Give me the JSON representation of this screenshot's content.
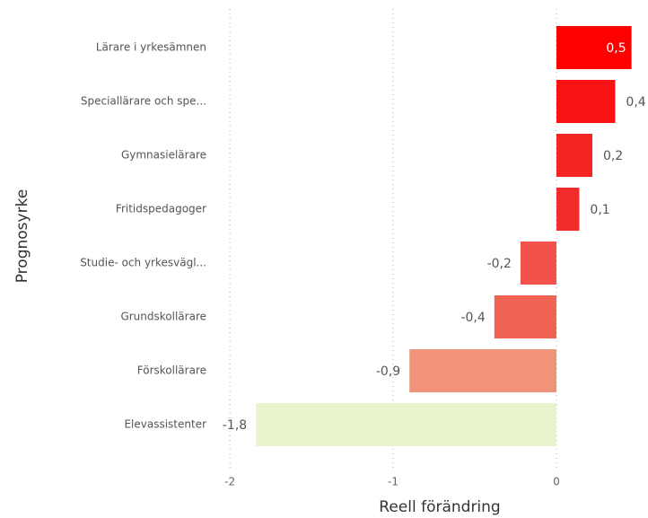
{
  "chart_data": {
    "type": "hbar",
    "y_label": "Prognosyrke",
    "x_label": "Reell förändring",
    "categories": [
      "Lärare i yrkesämnen",
      "Speciallärare och spe...",
      "Gymnasielärare",
      "Fritidspedagoger",
      "Studie- och yrkesvägl...",
      "Grundskollärare",
      "Förskollärare",
      "Elevassistenter"
    ],
    "values": [
      0.46,
      0.36,
      0.22,
      0.14,
      -0.22,
      -0.38,
      -0.9,
      -1.84
    ],
    "value_labels": [
      "0,5",
      "0,4",
      "0,2",
      "0,1",
      "-0,2",
      "-0,4",
      "-0,9",
      "-1,8"
    ],
    "colors": [
      "#fe0000",
      "#f81212",
      "#f42424",
      "#f22c2c",
      "#f2524a",
      "#ef6352",
      "#f09379",
      "#e9f4cf"
    ],
    "xlim": [
      -2.05,
      0.55
    ],
    "xticks": [
      -2,
      -1,
      0
    ],
    "grid": true
  }
}
